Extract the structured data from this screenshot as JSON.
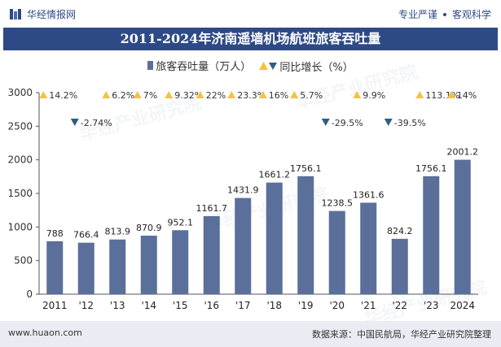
{
  "header": {
    "logo_text": "华经情报网",
    "slogan_left": "专业严谨",
    "slogan_right": "客观科学"
  },
  "watermark": "华经产业研究院",
  "footer": {
    "website": "www.huaon.com",
    "source": "数据来源：中国民航局，华经产业研究院整理"
  },
  "colors": {
    "bar": "#5a6f9a",
    "header_blue": "#2e4a86",
    "up": "#f5c242",
    "down": "#2f5e80"
  },
  "chart_data": {
    "type": "bar",
    "title": "2011-2024年济南遥墙机场航班旅客吞吐量",
    "legend": [
      "旅客吞吐量（万人）",
      "同比增长（%）"
    ],
    "categories": [
      "2011",
      "'12",
      "'13",
      "'14",
      "'15",
      "'16",
      "'17",
      "'18",
      "'19",
      "'20",
      "'21",
      "'22",
      "'23",
      "2024"
    ],
    "series": [
      {
        "name": "旅客吞吐量（万人）",
        "values": [
          788,
          766.4,
          813.9,
          870.9,
          952.1,
          1161.7,
          1431.9,
          1661.2,
          1756.1,
          1238.5,
          1361.6,
          824.2,
          1756.1,
          2001.2
        ],
        "labels": [
          "788",
          "766.4",
          "813.9",
          "870.9",
          "952.1",
          "1161.7",
          "1431.9",
          "1661.2",
          "1756.1",
          "1238.5",
          "1361.6",
          "824.2",
          "1756.1",
          "2001.2"
        ]
      },
      {
        "name": "同比增长（%）",
        "values": [
          14.2,
          -2.74,
          6.2,
          7,
          9.32,
          22,
          23.3,
          16,
          5.7,
          -29.5,
          9.9,
          -39.5,
          113.1,
          14
        ],
        "labels": [
          "14.2%",
          "-2.74%",
          "6.2%",
          "7%",
          "9.32%",
          "22%",
          "23.3%",
          "16%",
          "5.7%",
          "-29.5%",
          "9.9%",
          "-39.5%",
          "113.1%",
          "14%"
        ]
      }
    ],
    "y_ticks": [
      "0",
      "500",
      "1000",
      "1500",
      "2000",
      "2500",
      "3000"
    ],
    "ylim": [
      0,
      3000
    ]
  }
}
